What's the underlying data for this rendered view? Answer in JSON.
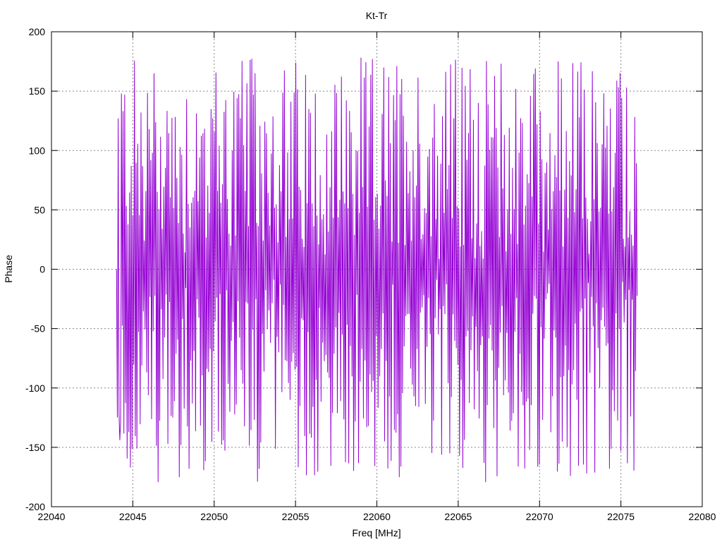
{
  "chart_data": {
    "type": "line",
    "title": "Kt-Tr",
    "xlabel": "Freq [MHz]",
    "ylabel": "Phase",
    "xlim": [
      22040,
      22080
    ],
    "ylim": [
      -200,
      200
    ],
    "xticks": [
      22040,
      22045,
      22050,
      22055,
      22060,
      22065,
      22070,
      22075,
      22080
    ],
    "yticks": [
      -200,
      -150,
      -100,
      -50,
      0,
      50,
      100,
      150,
      200
    ],
    "grid": true,
    "legend": "none",
    "series": [
      {
        "color": "#9400d3",
        "x_start": 22044.0,
        "x_end": 22076.0,
        "n_points": 640,
        "y_range": [
          -180,
          180
        ],
        "description_values": [
          0,
          127,
          -144,
          148,
          -130,
          65,
          -148,
          143,
          -100,
          169,
          -180,
          160,
          -120,
          170,
          -180,
          170,
          -160,
          178,
          -175,
          178,
          -170,
          178,
          -160,
          178,
          -150,
          178,
          -130,
          139,
          -165,
          178,
          -178,
          150,
          -170,
          178,
          -180,
          178,
          -180,
          178,
          -180,
          178,
          -178,
          172,
          -170,
          178,
          -160,
          178,
          -178,
          178,
          -180,
          178,
          -176,
          170,
          -170,
          178,
          -150,
          145,
          -120,
          130
        ]
      }
    ]
  }
}
